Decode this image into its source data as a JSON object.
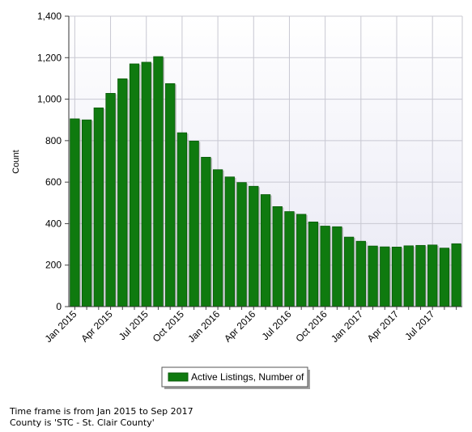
{
  "chart_data": {
    "type": "bar",
    "ylabel": "Count",
    "xlabel": "",
    "ylim": [
      0,
      1400
    ],
    "yticks": [
      "0",
      "200",
      "400",
      "600",
      "800",
      "1,000",
      "1,200",
      "1,400"
    ],
    "ytick_values": [
      0,
      200,
      400,
      600,
      800,
      1000,
      1200,
      1400
    ],
    "categories": [
      "Jan 2015",
      "Feb 2015",
      "Mar 2015",
      "Apr 2015",
      "May 2015",
      "Jun 2015",
      "Jul 2015",
      "Aug 2015",
      "Sep 2015",
      "Oct 2015",
      "Nov 2015",
      "Dec 2015",
      "Jan 2016",
      "Feb 2016",
      "Mar 2016",
      "Apr 2016",
      "May 2016",
      "Jun 2016",
      "Jul 2016",
      "Aug 2016",
      "Sep 2016",
      "Oct 2016",
      "Nov 2016",
      "Dec 2016",
      "Jan 2017",
      "Feb 2017",
      "Mar 2017",
      "Apr 2017",
      "May 2017",
      "Jun 2017",
      "Jul 2017",
      "Aug 2017",
      "Sep 2017"
    ],
    "xtick_labels": [
      "Jan 2015",
      "",
      "",
      "Apr 2015",
      "",
      "",
      "Jul 2015",
      "",
      "",
      "Oct 2015",
      "",
      "",
      "Jan 2016",
      "",
      "",
      "Apr 2016",
      "",
      "",
      "Jul 2016",
      "",
      "",
      "Oct 2016",
      "",
      "",
      "Jan 2017",
      "",
      "",
      "Apr 2017",
      "",
      "",
      "Jul 2017",
      "",
      ""
    ],
    "series": [
      {
        "name": "Active Listings, Number of",
        "color": "#0f7a0f",
        "values": [
          905,
          900,
          958,
          1028,
          1098,
          1170,
          1178,
          1205,
          1075,
          838,
          798,
          720,
          660,
          625,
          598,
          580,
          540,
          482,
          458,
          445,
          408,
          388,
          385,
          335,
          315,
          292,
          288,
          287,
          293,
          295,
          297,
          282,
          303
        ]
      }
    ],
    "grid": true,
    "legend_position": "bottom-center",
    "colors": {
      "plot_background": "#f0f0fa",
      "bar": "#0f7a0f",
      "bar_dark": "#0a5a0a",
      "grid": "#c8c8d2"
    }
  },
  "footnotes": {
    "line1": "Time frame is from Jan 2015 to Sep 2017",
    "line2": "County is 'STC - St. Clair County'"
  }
}
